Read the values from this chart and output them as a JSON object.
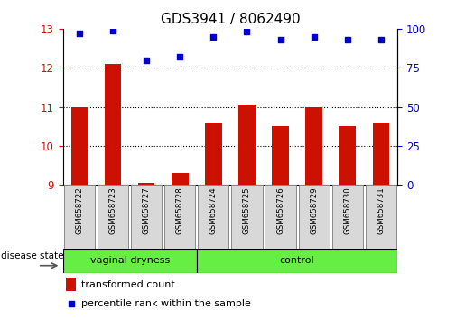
{
  "title": "GDS3941 / 8062490",
  "samples": [
    "GSM658722",
    "GSM658723",
    "GSM658727",
    "GSM658728",
    "GSM658724",
    "GSM658725",
    "GSM658726",
    "GSM658729",
    "GSM658730",
    "GSM658731"
  ],
  "bar_values": [
    11.0,
    12.1,
    9.05,
    9.3,
    10.6,
    11.05,
    10.5,
    11.0,
    10.5,
    10.6
  ],
  "percentile_values": [
    97,
    99,
    80,
    82,
    95,
    98,
    93,
    95,
    93,
    93
  ],
  "ylim_left": [
    9,
    13
  ],
  "ylim_right": [
    0,
    100
  ],
  "yticks_left": [
    9,
    10,
    11,
    12,
    13
  ],
  "yticks_right": [
    0,
    25,
    50,
    75,
    100
  ],
  "bar_color": "#cc1100",
  "dot_color": "#0000cc",
  "bar_width": 0.5,
  "group1_label": "vaginal dryness",
  "group2_label": "control",
  "group1_count": 4,
  "group2_count": 6,
  "disease_state_label": "disease state",
  "legend_bar_label": "transformed count",
  "legend_dot_label": "percentile rank within the sample",
  "group_bar_color": "#66ee44",
  "title_fontsize": 11,
  "tick_fontsize": 8.5,
  "label_fontsize": 8
}
